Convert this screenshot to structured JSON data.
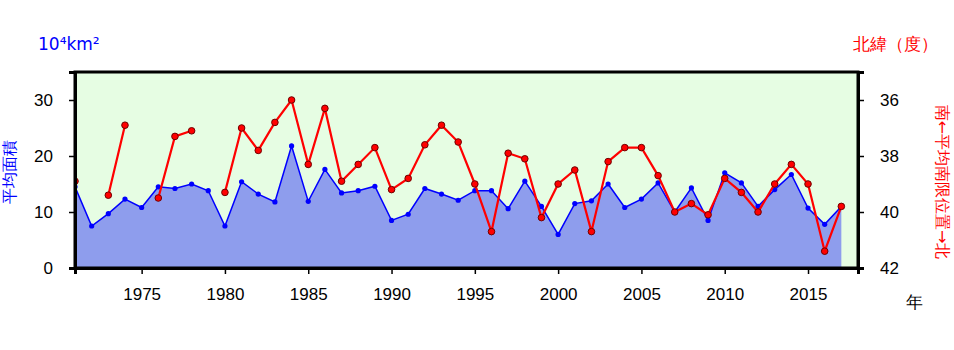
{
  "chart_data": {
    "type": "line",
    "y_axis_title": "平均面積",
    "y_axis_unit": "10⁴km²",
    "y2_axis_title": "南←平均南限位置→北",
    "y2_axis_unit": "北緯（度）",
    "x_axis_title": "年",
    "x": [
      1971,
      1972,
      1973,
      1974,
      1975,
      1976,
      1977,
      1978,
      1979,
      1980,
      1981,
      1982,
      1983,
      1984,
      1985,
      1986,
      1987,
      1988,
      1989,
      1990,
      1991,
      1992,
      1993,
      1994,
      1995,
      1996,
      1997,
      1998,
      1999,
      2000,
      2001,
      2002,
      2003,
      2004,
      2005,
      2006,
      2007,
      2008,
      2009,
      2010,
      2011,
      2012,
      2013,
      2014,
      2015,
      2016,
      2017
    ],
    "xlim": [
      1971,
      2018
    ],
    "xticks": [
      1975,
      1980,
      1985,
      1990,
      1995,
      2000,
      2005,
      2010,
      2015
    ],
    "ylim": [
      0,
      35
    ],
    "yticks": [
      0,
      10,
      20,
      30
    ],
    "y2lim": [
      42,
      35
    ],
    "y2ticks": [
      36,
      38,
      40,
      42
    ],
    "grid": false,
    "series": [
      {
        "type": "area",
        "color": "#0000ff",
        "marker": "circle",
        "values": [
          14.5,
          7.5,
          9.7,
          12.3,
          10.8,
          14.5,
          14.2,
          15.0,
          13.8,
          7.5,
          15.4,
          13.2,
          11.8,
          21.8,
          11.9,
          17.6,
          13.4,
          13.8,
          14.6,
          8.5,
          9.6,
          14.2,
          13.2,
          12.1,
          13.8,
          13.8,
          10.6,
          15.5,
          11.0,
          6.0,
          11.5,
          12.0,
          15.0,
          10.8,
          12.3,
          15.2,
          10.0,
          14.3,
          8.5,
          17.0,
          15.2,
          11.0,
          14.0,
          16.7,
          10.7,
          7.8,
          11.0
        ]
      },
      {
        "type": "line",
        "color": "#ff0000",
        "marker": "circle",
        "axis": "y2",
        "values": [
          38.9,
          null,
          39.4,
          36.9,
          null,
          39.5,
          37.3,
          37.1,
          null,
          39.3,
          37.0,
          37.8,
          36.8,
          36.0,
          38.3,
          36.3,
          38.9,
          38.3,
          37.7,
          39.2,
          38.8,
          37.6,
          36.9,
          37.5,
          39.0,
          40.7,
          37.9,
          38.1,
          40.2,
          39.0,
          38.5,
          40.7,
          38.2,
          37.7,
          37.7,
          38.7,
          40.0,
          39.7,
          40.1,
          38.8,
          39.3,
          40.0,
          39.0,
          38.3,
          39.0,
          41.4,
          39.8
        ]
      }
    ]
  }
}
